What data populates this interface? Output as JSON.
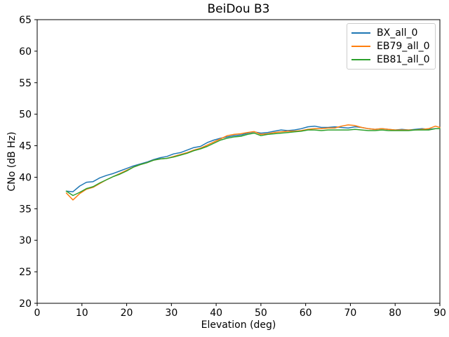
{
  "window": {
    "title": "BeiDou B3"
  },
  "colors": {
    "series_blue": "#1f77b4",
    "series_orange": "#ff7f0e",
    "series_green": "#2ca02c",
    "axis": "#000000",
    "legend_border": "#cccccc",
    "background": "#ffffff"
  },
  "chart_data": {
    "type": "line",
    "title": "BeiDou B3",
    "xlabel": "Elevation (deg)",
    "ylabel": "CNo (dB Hz)",
    "xlim": [
      0,
      90
    ],
    "ylim": [
      20,
      65
    ],
    "xticks": [
      0,
      10,
      20,
      30,
      40,
      50,
      60,
      70,
      80,
      90
    ],
    "yticks": [
      20,
      25,
      30,
      35,
      40,
      45,
      50,
      55,
      60,
      65
    ],
    "grid": false,
    "legend_position": "upper right",
    "x": [
      6.5,
      8,
      9.5,
      11,
      12.5,
      14,
      15.5,
      17,
      18.5,
      20,
      21.5,
      23,
      24.5,
      26,
      27.5,
      29,
      30.5,
      32,
      33.5,
      35,
      36.5,
      38,
      39.5,
      41,
      42.5,
      44,
      45.5,
      47,
      48.5,
      50,
      51.5,
      53,
      54.5,
      56,
      57.5,
      59,
      60.5,
      62,
      63.5,
      65,
      66.5,
      68,
      69.5,
      71,
      72.5,
      74,
      75.5,
      77,
      78.5,
      80,
      81.5,
      83,
      84.5,
      86,
      87.5,
      89,
      90
    ],
    "series": [
      {
        "name": "BX_all_0",
        "color": "#1f77b4",
        "values": [
          37.8,
          37.7,
          38.6,
          39.2,
          39.3,
          39.9,
          40.3,
          40.6,
          41.0,
          41.4,
          41.8,
          42.1,
          42.4,
          42.8,
          43.1,
          43.3,
          43.7,
          43.9,
          44.3,
          44.7,
          44.9,
          45.5,
          45.9,
          46.2,
          46.4,
          46.6,
          46.7,
          47.0,
          47.2,
          47.0,
          47.1,
          47.3,
          47.5,
          47.4,
          47.5,
          47.7,
          48.0,
          48.1,
          47.9,
          47.9,
          48.0,
          47.9,
          47.8,
          48.0,
          47.9,
          47.7,
          47.6,
          47.7,
          47.6,
          47.5,
          47.6,
          47.5,
          47.6,
          47.7,
          47.6,
          47.7,
          47.7
        ]
      },
      {
        "name": "EB79_all_0",
        "color": "#ff7f0e",
        "values": [
          37.5,
          36.4,
          37.4,
          38.1,
          38.4,
          39.0,
          39.6,
          40.1,
          40.6,
          41.1,
          41.6,
          42.0,
          42.3,
          42.7,
          42.9,
          43.0,
          43.3,
          43.6,
          43.9,
          44.3,
          44.6,
          45.1,
          45.6,
          46.1,
          46.6,
          46.8,
          46.9,
          47.1,
          47.25,
          46.8,
          46.9,
          47.1,
          47.2,
          47.3,
          47.3,
          47.4,
          47.6,
          47.7,
          47.7,
          47.8,
          47.8,
          48.1,
          48.3,
          48.2,
          47.9,
          47.7,
          47.6,
          47.7,
          47.6,
          47.5,
          47.5,
          47.5,
          47.5,
          47.6,
          47.7,
          48.1,
          47.9
        ]
      },
      {
        "name": "EB81_all_0",
        "color": "#2ca02c",
        "values": [
          37.8,
          37.1,
          37.6,
          38.2,
          38.5,
          39.1,
          39.6,
          40.1,
          40.5,
          41.0,
          41.6,
          42.0,
          42.3,
          42.7,
          42.9,
          43.0,
          43.2,
          43.5,
          43.8,
          44.2,
          44.5,
          44.9,
          45.4,
          45.9,
          46.2,
          46.4,
          46.5,
          46.8,
          47.0,
          46.6,
          46.8,
          46.9,
          47.0,
          47.1,
          47.2,
          47.3,
          47.5,
          47.5,
          47.4,
          47.5,
          47.5,
          47.5,
          47.5,
          47.6,
          47.5,
          47.4,
          47.4,
          47.5,
          47.4,
          47.4,
          47.4,
          47.4,
          47.5,
          47.5,
          47.5,
          47.7,
          47.7
        ]
      }
    ]
  }
}
